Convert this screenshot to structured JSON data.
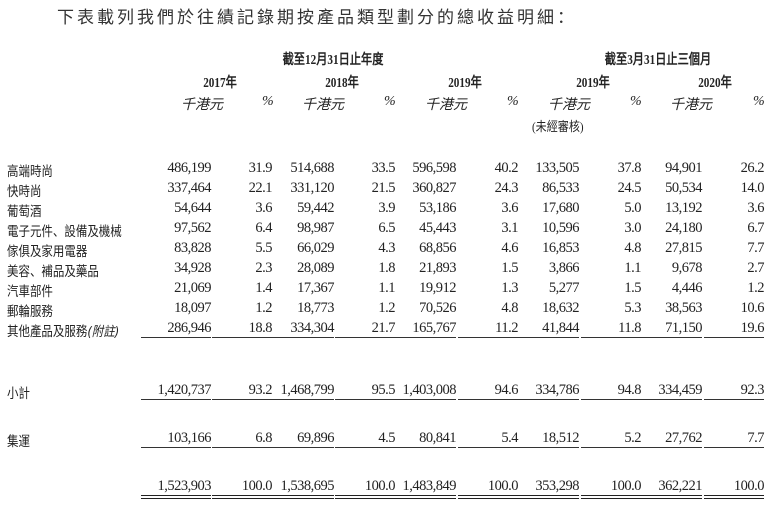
{
  "intro": "下表載列我們於往績記錄期按產品類型劃分的總收益明細：",
  "headers": {
    "period_annual": "截至12月31日止年度",
    "period_quarter": "截至3月31日止三個月",
    "years": [
      "2017年",
      "2018年",
      "2019年",
      "2019年",
      "2020年"
    ],
    "unit_amount": "千港元",
    "unit_pct": "%",
    "unaudited": "(未經審核)"
  },
  "rows": [
    {
      "label": "高端時尚",
      "values": [
        "486,199",
        "31.9",
        "514,688",
        "33.5",
        "596,598",
        "40.2",
        "133,505",
        "37.8",
        "94,901",
        "26.2"
      ]
    },
    {
      "label": "快時尚",
      "values": [
        "337,464",
        "22.1",
        "331,120",
        "21.5",
        "360,827",
        "24.3",
        "86,533",
        "24.5",
        "50,534",
        "14.0"
      ]
    },
    {
      "label": "葡萄酒",
      "values": [
        "54,644",
        "3.6",
        "59,442",
        "3.9",
        "53,186",
        "3.6",
        "17,680",
        "5.0",
        "13,192",
        "3.6"
      ]
    },
    {
      "label": "電子元件、設備及機械",
      "values": [
        "97,562",
        "6.4",
        "98,987",
        "6.5",
        "45,443",
        "3.1",
        "10,596",
        "3.0",
        "24,180",
        "6.7"
      ]
    },
    {
      "label": "傢俱及家用電器",
      "values": [
        "83,828",
        "5.5",
        "66,029",
        "4.3",
        "68,856",
        "4.6",
        "16,853",
        "4.8",
        "27,815",
        "7.7"
      ]
    },
    {
      "label": "美容、補品及藥品",
      "values": [
        "34,928",
        "2.3",
        "28,089",
        "1.8",
        "21,893",
        "1.5",
        "3,866",
        "1.1",
        "9,678",
        "2.7"
      ]
    },
    {
      "label": "汽車部件",
      "values": [
        "21,069",
        "1.4",
        "17,367",
        "1.1",
        "19,912",
        "1.3",
        "5,277",
        "1.5",
        "4,446",
        "1.2"
      ]
    },
    {
      "label": "郵輪服務",
      "values": [
        "18,097",
        "1.2",
        "18,773",
        "1.2",
        "70,526",
        "4.8",
        "18,632",
        "5.3",
        "38,563",
        "10.6"
      ]
    },
    {
      "label": "其他產品及服務",
      "label_note": "(附註)",
      "values": [
        "286,946",
        "18.8",
        "334,304",
        "21.7",
        "165,767",
        "11.2",
        "41,844",
        "11.8",
        "71,150",
        "19.6"
      ]
    }
  ],
  "subtotal": {
    "label": "小計",
    "values": [
      "1,420,737",
      "93.2",
      "1,468,799",
      "95.5",
      "1,403,008",
      "94.6",
      "334,786",
      "94.8",
      "334,459",
      "92.3"
    ]
  },
  "logistics": {
    "label": "集運",
    "values": [
      "103,166",
      "6.8",
      "69,896",
      "4.5",
      "80,841",
      "5.4",
      "18,512",
      "5.2",
      "27,762",
      "7.7"
    ]
  },
  "total": {
    "label": "",
    "values": [
      "1,523,903",
      "100.0",
      "1,538,695",
      "100.0",
      "1,483,849",
      "100.0",
      "353,298",
      "100.0",
      "362,221",
      "100.0"
    ]
  }
}
